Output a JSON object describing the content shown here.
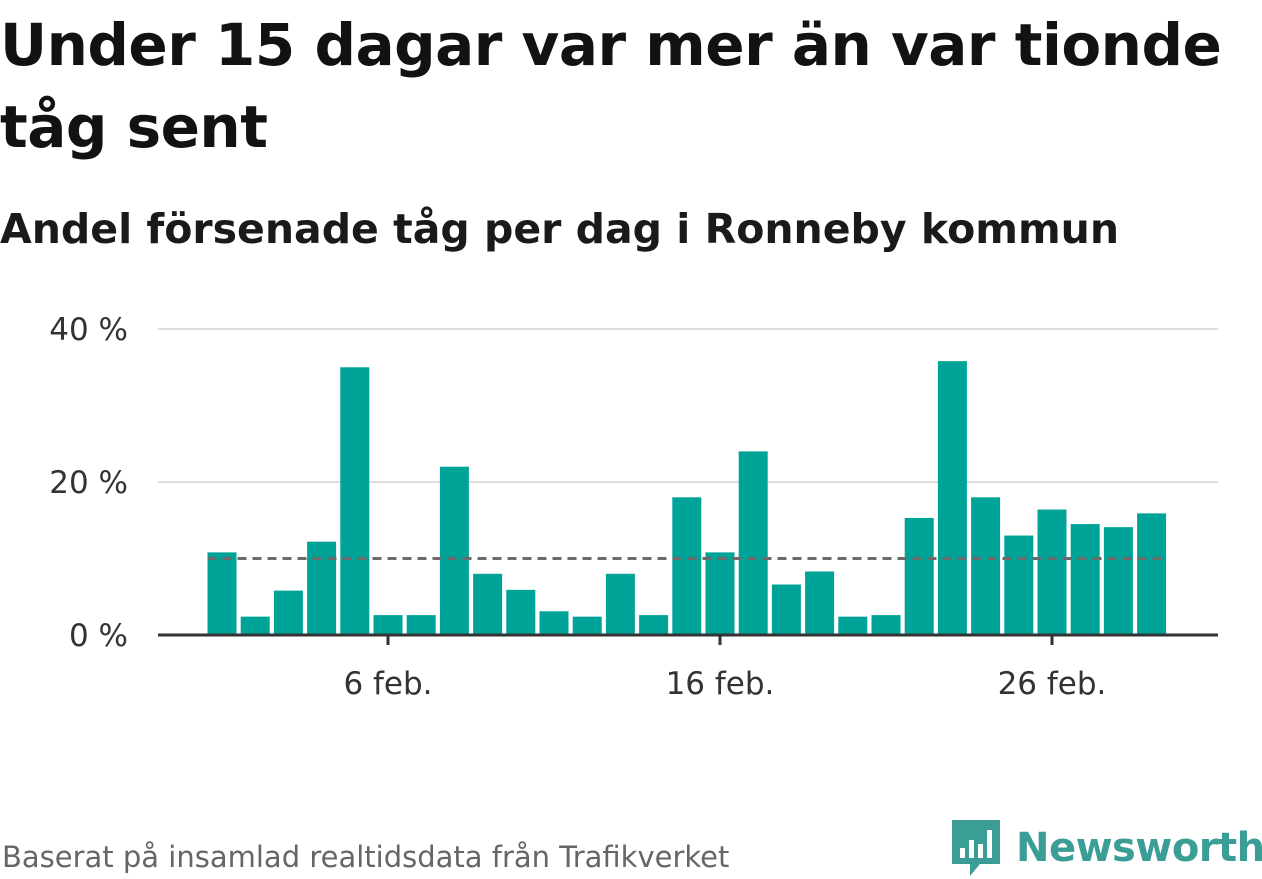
{
  "header": {
    "title": "Under 15 dagar var mer än var tionde tåg sent",
    "subtitle": "Andel försenade tåg per dag i Ronneby kommun"
  },
  "footer": {
    "source": "Baserat på insamlad realtidsdata från Trafikverket",
    "brand": "Newsworthy"
  },
  "colors": {
    "bar": "#00a398",
    "reference_line": "#6b6b6b",
    "grid": "#dddddd",
    "axis": "#333333",
    "brand": "#3a9e96"
  },
  "icons": {
    "brand_logo": "bar-chart-speech-bubble-icon"
  },
  "chart_data": {
    "type": "bar",
    "title": "",
    "xlabel": "",
    "ylabel": "",
    "ylim": [
      0,
      40
    ],
    "yticks": [
      0,
      20,
      40
    ],
    "ytick_labels": [
      "0 %",
      "20 %",
      "40 %"
    ],
    "grid": true,
    "x_tick_labels": [
      "6 feb.",
      "16 feb.",
      "26 feb."
    ],
    "x_tick_positions": [
      5,
      15,
      25
    ],
    "categories": [
      "1 feb.",
      "2 feb.",
      "3 feb.",
      "4 feb.",
      "5 feb.",
      "6 feb.",
      "7 feb.",
      "8 feb.",
      "9 feb.",
      "10 feb.",
      "11 feb.",
      "12 feb.",
      "13 feb.",
      "14 feb.",
      "15 feb.",
      "16 feb.",
      "17 feb.",
      "18 feb.",
      "19 feb.",
      "20 feb.",
      "21 feb.",
      "22 feb.",
      "23 feb.",
      "24 feb.",
      "25 feb.",
      "26 feb.",
      "27 feb.",
      "28 feb.",
      "29 feb."
    ],
    "values": [
      10.8,
      2.4,
      5.8,
      12.2,
      35.0,
      2.6,
      2.6,
      22.0,
      8.0,
      5.9,
      3.1,
      2.4,
      8.0,
      2.6,
      18.0,
      10.8,
      24.0,
      6.6,
      8.3,
      2.4,
      2.6,
      15.3,
      35.8,
      18.0,
      13.0,
      16.4,
      14.5,
      14.1,
      15.9
    ],
    "reference_line": 10
  }
}
